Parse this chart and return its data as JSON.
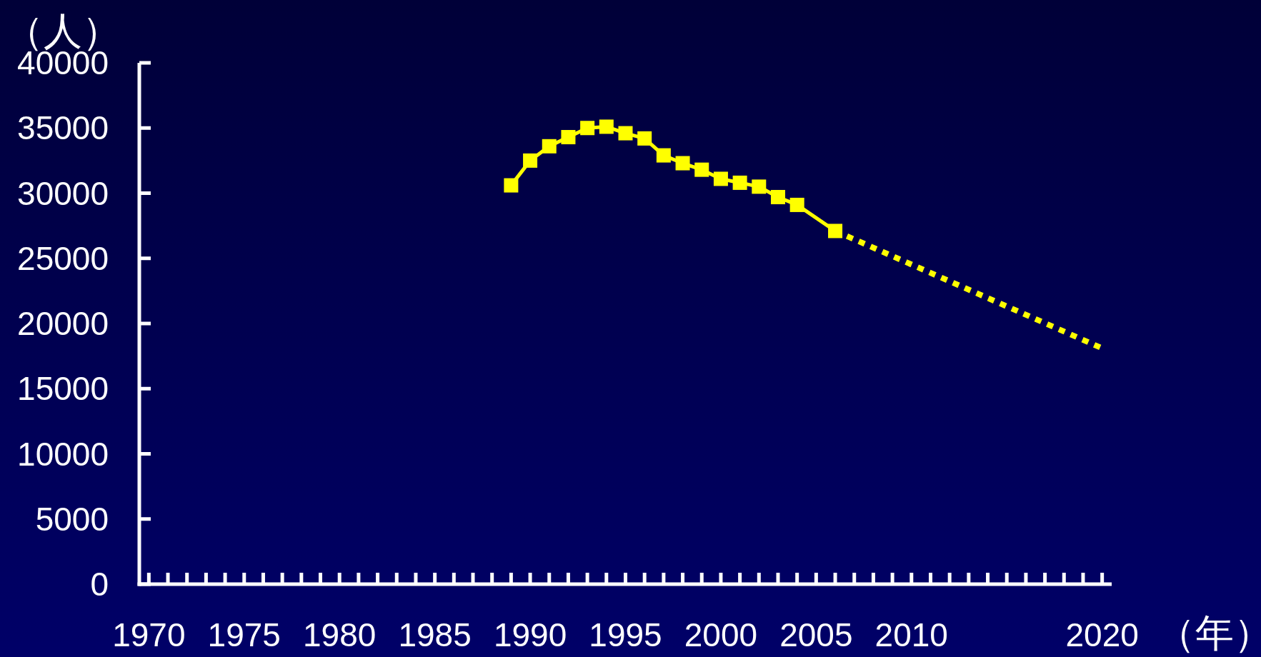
{
  "chart_data": {
    "type": "line",
    "xlabel": "（年）",
    "ylabel": "（人）",
    "series": [
      {
        "x": [
          1989,
          1990,
          1991,
          1992,
          1993,
          1994,
          1995,
          1996,
          1997,
          1998,
          1999,
          2000,
          2001,
          2002,
          2003,
          2004,
          2006
        ],
        "values": [
          30600,
          32500,
          33600,
          34300,
          35000,
          35100,
          34600,
          34200,
          32900,
          32300,
          31800,
          31100,
          30800,
          30500,
          29700,
          29100,
          27100
        ],
        "color": "#ffff00",
        "marker": "square",
        "line_style": "solid"
      },
      {
        "x": [
          2006,
          2020
        ],
        "values": [
          27100,
          18100
        ],
        "color": "#ffff00",
        "marker": "none",
        "line_style": "dotted"
      }
    ],
    "xlim": [
      1969.5,
      2020.5
    ],
    "ylim": [
      0,
      40000
    ],
    "xticks": [
      1970,
      {
        "value": 1971,
        "label": null
      },
      {
        "value": 1972,
        "label": null
      },
      {
        "value": 1973,
        "label": null
      },
      {
        "value": 1974,
        "label": null
      },
      1975,
      {
        "value": 1976,
        "label": null
      },
      {
        "value": 1977,
        "label": null
      },
      {
        "value": 1978,
        "label": null
      },
      {
        "value": 1979,
        "label": null
      },
      1980,
      {
        "value": 1981,
        "label": null
      },
      {
        "value": 1982,
        "label": null
      },
      {
        "value": 1983,
        "label": null
      },
      {
        "value": 1984,
        "label": null
      },
      1985,
      {
        "value": 1986,
        "label": null
      },
      {
        "value": 1987,
        "label": null
      },
      {
        "value": 1988,
        "label": null
      },
      {
        "value": 1989,
        "label": null
      },
      1990,
      {
        "value": 1991,
        "label": null
      },
      {
        "value": 1992,
        "label": null
      },
      {
        "value": 1993,
        "label": null
      },
      {
        "value": 1994,
        "label": null
      },
      1995,
      {
        "value": 1996,
        "label": null
      },
      {
        "value": 1997,
        "label": null
      },
      {
        "value": 1998,
        "label": null
      },
      {
        "value": 1999,
        "label": null
      },
      2000,
      {
        "value": 2001,
        "label": null
      },
      {
        "value": 2002,
        "label": null
      },
      {
        "value": 2003,
        "label": null
      },
      {
        "value": 2004,
        "label": null
      },
      2005,
      {
        "value": 2006,
        "label": null
      },
      {
        "value": 2007,
        "label": null
      },
      {
        "value": 2008,
        "label": null
      },
      {
        "value": 2009,
        "label": null
      },
      2010,
      {
        "value": 2011,
        "label": null
      },
      {
        "value": 2012,
        "label": null
      },
      {
        "value": 2013,
        "label": null
      },
      {
        "value": 2014,
        "label": null
      },
      {
        "value": 2015,
        "label": null
      },
      {
        "value": 2016,
        "label": null
      },
      {
        "value": 2017,
        "label": null
      },
      {
        "value": 2018,
        "label": null
      },
      {
        "value": 2019,
        "label": null
      },
      2020
    ],
    "yticks": [
      0,
      5000,
      10000,
      15000,
      20000,
      25000,
      30000,
      35000,
      40000
    ],
    "grid": false
  }
}
